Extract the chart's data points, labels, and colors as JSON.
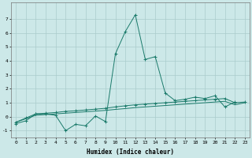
{
  "xlabel": "Humidex (Indice chaleur)",
  "x_values": [
    0,
    1,
    2,
    3,
    4,
    5,
    6,
    7,
    8,
    9,
    10,
    11,
    12,
    13,
    14,
    15,
    16,
    17,
    18,
    19,
    20,
    21,
    22,
    23
  ],
  "line1_y": [
    -0.5,
    -0.3,
    0.2,
    0.2,
    0.1,
    -1.0,
    -0.55,
    -0.65,
    0.05,
    -0.35,
    4.5,
    6.1,
    7.3,
    4.1,
    4.3,
    1.7,
    1.15,
    1.25,
    1.4,
    1.3,
    1.5,
    0.7,
    1.05,
    null
  ],
  "line2_y": [
    -0.4,
    -0.1,
    0.2,
    0.25,
    0.3,
    0.38,
    0.42,
    0.48,
    0.54,
    0.6,
    0.7,
    0.78,
    0.85,
    0.9,
    0.95,
    1.0,
    1.05,
    1.1,
    1.15,
    1.2,
    1.25,
    1.3,
    1.0,
    1.05
  ],
  "line3_y": [
    -0.4,
    -0.15,
    0.1,
    0.15,
    0.2,
    0.25,
    0.3,
    0.35,
    0.4,
    0.45,
    0.52,
    0.58,
    0.65,
    0.7,
    0.75,
    0.8,
    0.85,
    0.9,
    0.95,
    1.0,
    1.05,
    1.1,
    0.85,
    1.0
  ],
  "ylim": [
    -1.5,
    8.2
  ],
  "yticks": [
    -1,
    0,
    1,
    2,
    3,
    4,
    5,
    6,
    7
  ],
  "xlim": [
    -0.5,
    23.5
  ],
  "color": "#1a7a6a",
  "bg_color": "#cce8e8",
  "grid_color": "#aacccc"
}
